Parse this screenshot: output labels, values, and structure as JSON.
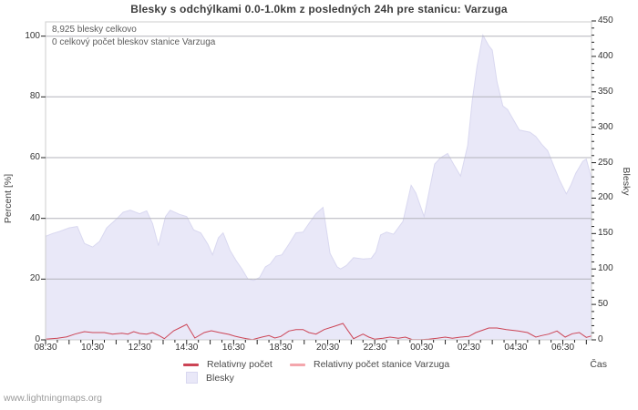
{
  "title": "Blesky s odchýlkami 0.0-1.0km z posledných 24h pre stanicu: Varzuga",
  "watermark": "www.lightningmaps.org",
  "annotations": {
    "total_strikes": "8,925 blesky celkovo",
    "station_total": "0 celkový počet bleskov stanice Varzuga"
  },
  "legend": [
    {
      "label": "Relativny počet",
      "type": "line",
      "color": "#cc4455"
    },
    {
      "label": "Relativny počet stanice Varzuga",
      "type": "line",
      "color": "#f4a6ac"
    },
    {
      "label": "Blesky",
      "type": "area",
      "color": "#e9e8f8"
    }
  ],
  "colors": {
    "area_fill": "#e9e8f8",
    "area_edge": "#d9d8f0",
    "grid": "#b3b3bb",
    "border": "#cccccc",
    "tick": "#222222",
    "red_line": "#cc4455",
    "pink_line": "#f4a6ac"
  },
  "chart_data": {
    "type": "area",
    "title": "Blesky s odchýlkami 0.0-1.0km z posledných 24h pre stanicu: Varzuga",
    "x_unit": "hours since 08:30",
    "hours_span": 23.22,
    "grid": "on",
    "left_axis": {
      "label": "Percent  [%]",
      "min": 0,
      "max": 104.7,
      "ticks": [
        0,
        20,
        40,
        60,
        80,
        100
      ]
    },
    "right_axis": {
      "label": "Blesky",
      "min": 0,
      "max": 450,
      "ticks": [
        0,
        50,
        100,
        150,
        200,
        250,
        300,
        350,
        400,
        450
      ],
      "minor_step": 10
    },
    "x_axis": {
      "label": "Čas",
      "tick_labels": [
        {
          "t": 0,
          "label": "08:30"
        },
        {
          "t": 2,
          "label": "10:30"
        },
        {
          "t": 4,
          "label": "12:30"
        },
        {
          "t": 6,
          "label": "14:30"
        },
        {
          "t": 8,
          "label": "16:30"
        },
        {
          "t": 10,
          "label": "18:30"
        },
        {
          "t": 12,
          "label": "20:30"
        },
        {
          "t": 14,
          "label": "22:30"
        },
        {
          "t": 16,
          "label": "00:30"
        },
        {
          "t": 18,
          "label": "02:30"
        },
        {
          "t": 20,
          "label": "04:30"
        },
        {
          "t": 22,
          "label": "06:30"
        }
      ]
    },
    "series": [
      {
        "name": "Blesky",
        "type": "area",
        "axis": "right",
        "points": [
          [
            0,
            146
          ],
          [
            0.3,
            150
          ],
          [
            0.6,
            153
          ],
          [
            1.0,
            158
          ],
          [
            1.35,
            160
          ],
          [
            1.65,
            136
          ],
          [
            2.0,
            131
          ],
          [
            2.3,
            139
          ],
          [
            2.6,
            158
          ],
          [
            3.0,
            170
          ],
          [
            3.3,
            180
          ],
          [
            3.6,
            183
          ],
          [
            4.0,
            178
          ],
          [
            4.3,
            182
          ],
          [
            4.55,
            164
          ],
          [
            4.8,
            133
          ],
          [
            5.1,
            174
          ],
          [
            5.3,
            183
          ],
          [
            5.7,
            177
          ],
          [
            6.0,
            174
          ],
          [
            6.3,
            155
          ],
          [
            6.6,
            151
          ],
          [
            6.9,
            135
          ],
          [
            7.1,
            120
          ],
          [
            7.35,
            144
          ],
          [
            7.55,
            151
          ],
          [
            7.85,
            126
          ],
          [
            8.1,
            112
          ],
          [
            8.35,
            100
          ],
          [
            8.6,
            86
          ],
          [
            8.85,
            84
          ],
          [
            9.1,
            88
          ],
          [
            9.35,
            103
          ],
          [
            9.55,
            107
          ],
          [
            9.8,
            118
          ],
          [
            10.05,
            120
          ],
          [
            10.35,
            135
          ],
          [
            10.65,
            151
          ],
          [
            10.95,
            152
          ],
          [
            11.2,
            164
          ],
          [
            11.5,
            178
          ],
          [
            11.8,
            187
          ],
          [
            12.1,
            122
          ],
          [
            12.4,
            103
          ],
          [
            12.55,
            100
          ],
          [
            12.8,
            105
          ],
          [
            13.1,
            116
          ],
          [
            13.5,
            114
          ],
          [
            13.85,
            115
          ],
          [
            14.05,
            124
          ],
          [
            14.25,
            148
          ],
          [
            14.5,
            152
          ],
          [
            14.8,
            149
          ],
          [
            15.2,
            167
          ],
          [
            15.55,
            218
          ],
          [
            15.75,
            207
          ],
          [
            16.1,
            174
          ],
          [
            16.55,
            248
          ],
          [
            16.8,
            257
          ],
          [
            17.1,
            263
          ],
          [
            17.35,
            248
          ],
          [
            17.65,
            231
          ],
          [
            17.95,
            274
          ],
          [
            18.15,
            338
          ],
          [
            18.35,
            386
          ],
          [
            18.6,
            430
          ],
          [
            18.85,
            415
          ],
          [
            19.0,
            409
          ],
          [
            19.2,
            364
          ],
          [
            19.45,
            330
          ],
          [
            19.65,
            325
          ],
          [
            20.15,
            296
          ],
          [
            20.6,
            293
          ],
          [
            20.85,
            287
          ],
          [
            21.1,
            276
          ],
          [
            21.35,
            267
          ],
          [
            21.85,
            226
          ],
          [
            22.15,
            206
          ],
          [
            22.35,
            219
          ],
          [
            22.55,
            235
          ],
          [
            22.85,
            252
          ],
          [
            23.0,
            255
          ],
          [
            23.22,
            228
          ]
        ]
      },
      {
        "name": "Relativny počet",
        "type": "line",
        "axis": "left",
        "points": [
          [
            0,
            0.2
          ],
          [
            0.5,
            0.5
          ],
          [
            0.9,
            1.0
          ],
          [
            1.25,
            1.9
          ],
          [
            1.65,
            2.7
          ],
          [
            2.0,
            2.4
          ],
          [
            2.5,
            2.4
          ],
          [
            2.85,
            1.9
          ],
          [
            3.25,
            2.2
          ],
          [
            3.5,
            1.9
          ],
          [
            3.75,
            2.7
          ],
          [
            4.0,
            2.1
          ],
          [
            4.3,
            1.9
          ],
          [
            4.55,
            2.4
          ],
          [
            4.8,
            1.5
          ],
          [
            5.05,
            0.4
          ],
          [
            5.45,
            3.0
          ],
          [
            5.85,
            4.5
          ],
          [
            6.0,
            5.1
          ],
          [
            6.35,
            0.6
          ],
          [
            6.75,
            2.4
          ],
          [
            7.05,
            3.0
          ],
          [
            7.4,
            2.4
          ],
          [
            7.8,
            1.8
          ],
          [
            8.05,
            1.2
          ],
          [
            8.35,
            0.7
          ],
          [
            8.55,
            0.4
          ],
          [
            8.8,
            0.1
          ],
          [
            9.2,
            0.9
          ],
          [
            9.5,
            1.4
          ],
          [
            9.75,
            0.6
          ],
          [
            10.0,
            1.1
          ],
          [
            10.35,
            2.9
          ],
          [
            10.65,
            3.4
          ],
          [
            10.95,
            3.4
          ],
          [
            11.2,
            2.4
          ],
          [
            11.5,
            1.9
          ],
          [
            11.85,
            3.4
          ],
          [
            12.3,
            4.5
          ],
          [
            12.65,
            5.4
          ],
          [
            13.1,
            0.4
          ],
          [
            13.5,
            1.9
          ],
          [
            13.75,
            0.9
          ],
          [
            14.0,
            0.2
          ],
          [
            14.35,
            0.5
          ],
          [
            14.65,
            0.9
          ],
          [
            15.0,
            0.5
          ],
          [
            15.3,
            0.9
          ],
          [
            15.6,
            0.1
          ],
          [
            15.95,
            0.1
          ],
          [
            16.3,
            0.2
          ],
          [
            16.65,
            0.5
          ],
          [
            17.0,
            0.9
          ],
          [
            17.3,
            0.5
          ],
          [
            17.65,
            0.9
          ],
          [
            18.0,
            1.1
          ],
          [
            18.3,
            2.4
          ],
          [
            18.85,
            3.9
          ],
          [
            19.2,
            3.9
          ],
          [
            19.6,
            3.4
          ],
          [
            20.1,
            2.9
          ],
          [
            20.5,
            2.4
          ],
          [
            20.85,
            0.9
          ],
          [
            21.1,
            1.4
          ],
          [
            21.4,
            1.9
          ],
          [
            21.75,
            2.9
          ],
          [
            22.1,
            0.9
          ],
          [
            22.4,
            2.0
          ],
          [
            22.7,
            2.4
          ],
          [
            23.0,
            0.8
          ],
          [
            23.22,
            1.3
          ]
        ]
      },
      {
        "name": "Relativny počet stanice Varzuga",
        "type": "line",
        "axis": "left",
        "points": [
          [
            0,
            0
          ],
          [
            23.22,
            0
          ]
        ]
      }
    ]
  }
}
